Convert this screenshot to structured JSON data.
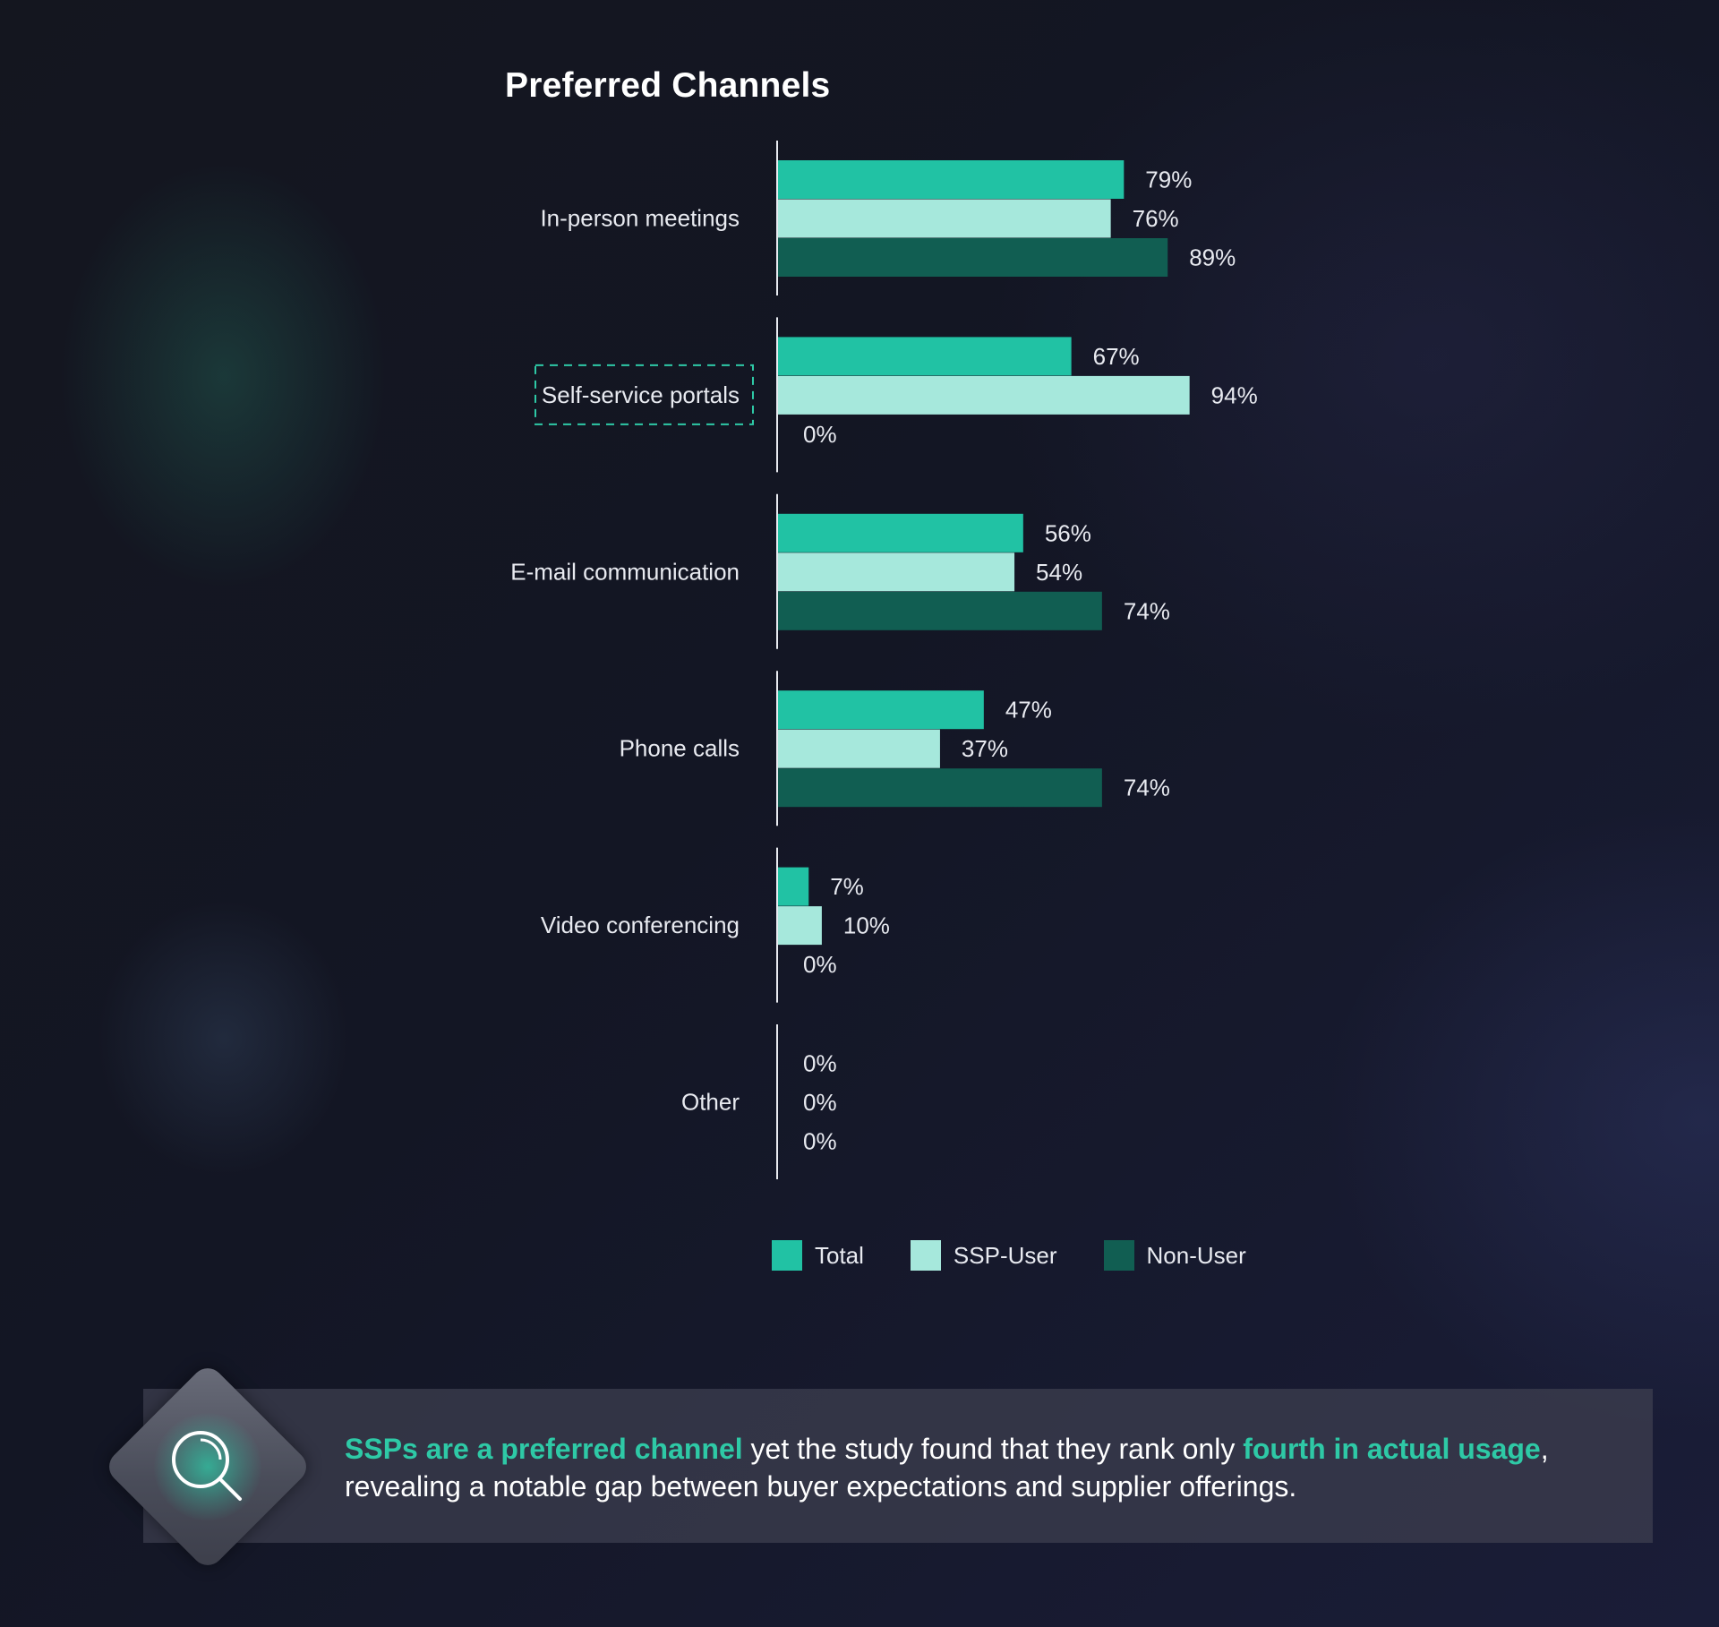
{
  "chart_data": {
    "type": "bar",
    "orientation": "horizontal",
    "title": "Preferred Channels",
    "categories": [
      "In-person meetings",
      "Self-service portals",
      "E-mail communication",
      "Phone calls",
      "Video conferencing",
      "Other"
    ],
    "series": [
      {
        "name": "Total",
        "color": "#21c2a4",
        "values": [
          79,
          67,
          56,
          47,
          7,
          0
        ]
      },
      {
        "name": "SSP-User",
        "color": "#a6e8dc",
        "values": [
          76,
          94,
          54,
          37,
          10,
          0
        ]
      },
      {
        "name": "Non-User",
        "color": "#115e52",
        "values": [
          89,
          0,
          74,
          74,
          0,
          0
        ]
      }
    ],
    "value_suffix": "%",
    "xlim": [
      0,
      100
    ],
    "highlighted_category": "Self-service portals",
    "legend_position": "bottom",
    "grid": false
  },
  "callout": {
    "highlight_1": "SSPs are a preferred channel",
    "text_1": " yet the study found that they rank only ",
    "highlight_2": "fourth in actual usage",
    "text_2": ", revealing a notable gap between buyer expectations and supplier offerings.",
    "icon": "search-icon",
    "accent_color": "#2ec9a6"
  }
}
